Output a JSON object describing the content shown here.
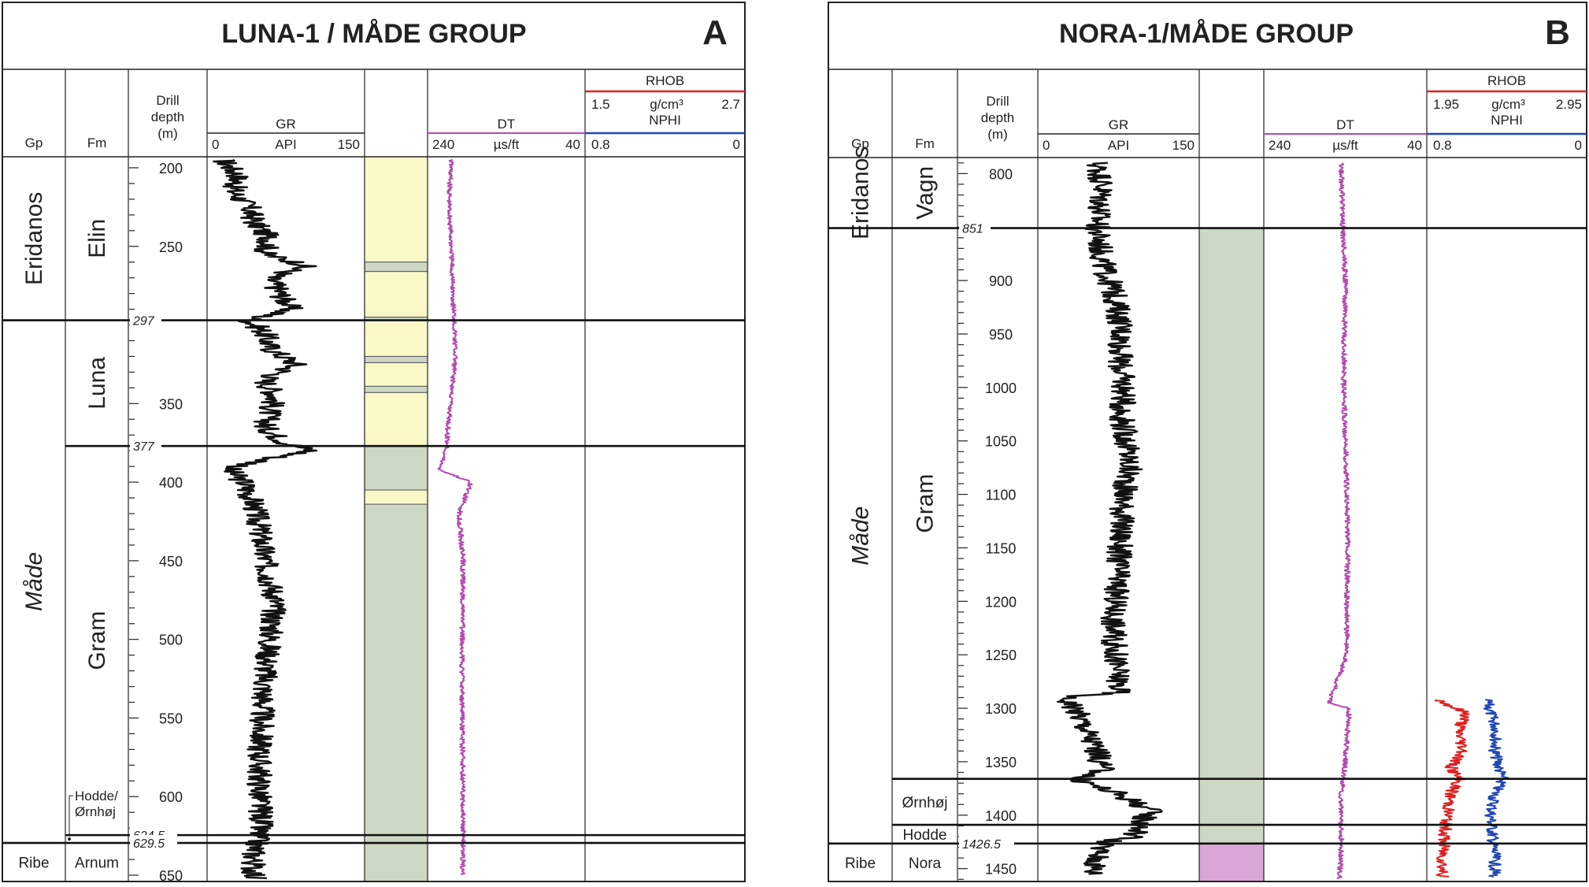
{
  "panels": [
    {
      "id": "A",
      "title": "LUNA-1 / MÅDE GROUP",
      "letter": "A",
      "headers": {
        "gp": "Gp",
        "fm": "Fm",
        "drill_depth": [
          "Drill",
          "depth",
          "(m)"
        ],
        "gr": {
          "name": "GR",
          "unit": "API",
          "min": "0",
          "max": "150"
        },
        "dt": {
          "name": "DT",
          "unit": "µs/ft",
          "min": "240",
          "max": "40"
        },
        "rhob": {
          "name": "RHOB",
          "unit": "g/cm³",
          "min": "1.5",
          "max": "2.7"
        },
        "nphi": {
          "name": "NPHI",
          "min": "0.8",
          "max": "0"
        }
      },
      "depth_range": [
        193,
        654
      ],
      "depth_ticks": [
        "200",
        "250",
        "300",
        "350",
        "400",
        "450",
        "500",
        "550",
        "600",
        "650"
      ],
      "group_units": [
        {
          "name": "Eridanos",
          "top": 193,
          "base": 297
        },
        {
          "name": "Måde",
          "top": 297,
          "base": 629.5,
          "italic": true
        },
        {
          "name": "Ribe",
          "top": 629.5,
          "base": 654
        }
      ],
      "formation_units": [
        {
          "name": "Elin",
          "top": 193,
          "base": 297
        },
        {
          "name": "Luna",
          "top": 297,
          "base": 377
        },
        {
          "name": "Gram",
          "top": 377,
          "base": 624.5
        },
        {
          "name": "Arnum",
          "top": 629.5,
          "base": 654
        }
      ],
      "small_label": [
        "Hodde/",
        "Ørnhøj"
      ],
      "tops": [
        {
          "depth": 297,
          "label": "297"
        },
        {
          "depth": 377,
          "label": "377"
        },
        {
          "depth": 624.5,
          "label": "624.5"
        },
        {
          "depth": 629.5,
          "label": "629.5"
        }
      ],
      "lithology": [
        {
          "top": 193,
          "base": 260,
          "type": "sand"
        },
        {
          "top": 260,
          "base": 266,
          "type": "clay"
        },
        {
          "top": 266,
          "base": 295,
          "type": "sand"
        },
        {
          "top": 295,
          "base": 297,
          "type": "clay"
        },
        {
          "top": 297,
          "base": 320,
          "type": "sand"
        },
        {
          "top": 320,
          "base": 324,
          "type": "clay"
        },
        {
          "top": 324,
          "base": 339,
          "type": "sand"
        },
        {
          "top": 339,
          "base": 343,
          "type": "clay"
        },
        {
          "top": 343,
          "base": 377,
          "type": "sand"
        },
        {
          "top": 377,
          "base": 405,
          "type": "clay"
        },
        {
          "top": 405,
          "base": 414,
          "type": "sand"
        },
        {
          "top": 414,
          "base": 654,
          "type": "clay"
        }
      ],
      "colors": {
        "sand": "#fbf8c8",
        "clay": "#ccd7c4",
        "gr": "#111111",
        "dt": "#b24bb0",
        "rhob": "#e02020",
        "nphi": "#2046b4"
      }
    },
    {
      "id": "B",
      "title": "NORA-1/MÅDE GROUP",
      "letter": "B",
      "headers": {
        "gp": "Gp",
        "fm": "Fm",
        "drill_depth": [
          "Drill",
          "depth",
          "(m)"
        ],
        "gr": {
          "name": "GR",
          "unit": "API",
          "min": "0",
          "max": "150"
        },
        "dt": {
          "name": "DT",
          "unit": "µs/ft",
          "min": "240",
          "max": "40"
        },
        "rhob": {
          "name": "RHOB",
          "unit": "g/cm³",
          "min": "1.95",
          "max": "2.95"
        },
        "nphi": {
          "name": "NPHI",
          "min": "0.8",
          "max": "0"
        }
      },
      "depth_range": [
        785,
        1462
      ],
      "depth_ticks": [
        "800",
        "850",
        "900",
        "950",
        "1000",
        "1050",
        "1100",
        "1150",
        "1200",
        "1250",
        "1300",
        "1350",
        "1400",
        "1450"
      ],
      "group_units": [
        {
          "name": "Eridanos",
          "top": 785,
          "base": 851
        },
        {
          "name": "Måde",
          "top": 851,
          "base": 1426.5,
          "italic": true
        },
        {
          "name": "Ribe",
          "top": 1426.5,
          "base": 1462
        }
      ],
      "formation_units": [
        {
          "name": "Vagn",
          "top": 785,
          "base": 851
        },
        {
          "name": "Gram",
          "top": 851,
          "base": 1366
        },
        {
          "name": "Ørnhøj",
          "top": 1366,
          "base": 1409
        },
        {
          "name": "Hodde",
          "top": 1409,
          "base": 1426.5
        },
        {
          "name": "Nora",
          "top": 1426.5,
          "base": 1462
        }
      ],
      "tops": [
        {
          "depth": 851,
          "label": "851"
        },
        {
          "depth": 1366,
          "label": ""
        },
        {
          "depth": 1409,
          "label": ""
        },
        {
          "depth": 1426.5,
          "label": "1426.5"
        }
      ],
      "lithology": [
        {
          "top": 851,
          "base": 1426.5,
          "type": "clay"
        },
        {
          "top": 1426.5,
          "base": 1462,
          "type": "mud"
        }
      ],
      "colors": {
        "sand": "#fbf8c8",
        "clay": "#ccd7c4",
        "mud": "#d9a6d7",
        "gr": "#111111",
        "dt": "#b24bb0",
        "rhob": "#e02020",
        "nphi": "#2046b4"
      }
    }
  ],
  "chart_data": [
    {
      "type": "line",
      "title": "LUNA-1 / MÅDE GROUP",
      "ylabel": "Drill depth (m)",
      "ylim": [
        193,
        654
      ],
      "y_axis": "depth increasing downward",
      "series": [
        {
          "name": "GR",
          "unit": "API",
          "xlim": [
            0,
            150
          ],
          "depth": [
            195,
            205,
            215,
            225,
            235,
            245,
            255,
            262,
            270,
            280,
            290,
            297,
            305,
            315,
            325,
            335,
            345,
            355,
            365,
            375,
            380,
            385,
            392,
            400,
            415,
            430,
            450,
            475,
            500,
            525,
            550,
            575,
            600,
            615,
            625,
            635,
            645,
            652
          ],
          "values": [
            15,
            30,
            25,
            40,
            45,
            60,
            55,
            95,
            60,
            70,
            80,
            40,
            55,
            60,
            85,
            55,
            65,
            60,
            55,
            75,
            100,
            60,
            20,
            35,
            45,
            50,
            55,
            65,
            60,
            55,
            52,
            50,
            50,
            52,
            48,
            45,
            44,
            46
          ]
        },
        {
          "name": "DT",
          "unit": "µs/ft",
          "xlim": [
            240,
            40
          ],
          "depth": [
            195,
            220,
            250,
            280,
            297,
            320,
            345,
            370,
            377,
            392,
            400,
            420,
            450,
            500,
            550,
            600,
            650
          ],
          "values": [
            210,
            213,
            210,
            208,
            206,
            205,
            210,
            215,
            215,
            225,
            185,
            200,
            195,
            196,
            196,
            195,
            195
          ]
        }
      ]
    },
    {
      "type": "line",
      "title": "NORA-1/MÅDE GROUP",
      "ylabel": "Drill depth (m)",
      "ylim": [
        785,
        1462
      ],
      "y_axis": "depth increasing downward",
      "series": [
        {
          "name": "GR",
          "unit": "API",
          "xlim": [
            0,
            150
          ],
          "depth": [
            790,
            810,
            830,
            851,
            870,
            890,
            910,
            930,
            950,
            975,
            1000,
            1025,
            1050,
            1075,
            1100,
            1125,
            1150,
            1175,
            1200,
            1225,
            1250,
            1275,
            1285,
            1290,
            1300,
            1320,
            1340,
            1360,
            1366,
            1380,
            1395,
            1410,
            1420,
            1426,
            1440,
            1455
          ],
          "values": [
            55,
            60,
            58,
            55,
            58,
            62,
            70,
            75,
            78,
            76,
            80,
            78,
            82,
            85,
            80,
            78,
            76,
            74,
            72,
            70,
            72,
            75,
            75,
            25,
            35,
            45,
            55,
            60,
            35,
            75,
            105,
            95,
            90,
            60,
            55,
            52
          ]
        },
        {
          "name": "DT",
          "unit": "µs/ft",
          "xlim": [
            240,
            40
          ],
          "depth": [
            790,
            851,
            900,
            950,
            1000,
            1050,
            1100,
            1150,
            1200,
            1250,
            1295,
            1300,
            1330,
            1366,
            1380,
            1400,
            1426,
            1460
          ],
          "values": [
            145,
            143,
            140,
            141,
            142,
            140,
            138,
            137,
            138,
            138,
            160,
            135,
            138,
            142,
            145,
            145,
            145,
            147
          ]
        },
        {
          "name": "RHOB",
          "unit": "g/cm³",
          "xlim": [
            1.95,
            2.95
          ],
          "depth": [
            1292,
            1305,
            1320,
            1340,
            1355,
            1366,
            1380,
            1400,
            1420,
            1440,
            1458
          ],
          "values": [
            2.02,
            2.2,
            2.15,
            2.18,
            2.1,
            2.15,
            2.1,
            2.08,
            2.06,
            2.05,
            2.05
          ]
        },
        {
          "name": "NPHI",
          "unit": "",
          "xlim": [
            0.8,
            0
          ],
          "depth": [
            1292,
            1305,
            1320,
            1340,
            1355,
            1366,
            1380,
            1400,
            1420,
            1440,
            1458
          ],
          "values": [
            0.5,
            0.48,
            0.45,
            0.46,
            0.44,
            0.42,
            0.46,
            0.48,
            0.47,
            0.46,
            0.46
          ]
        }
      ]
    }
  ]
}
